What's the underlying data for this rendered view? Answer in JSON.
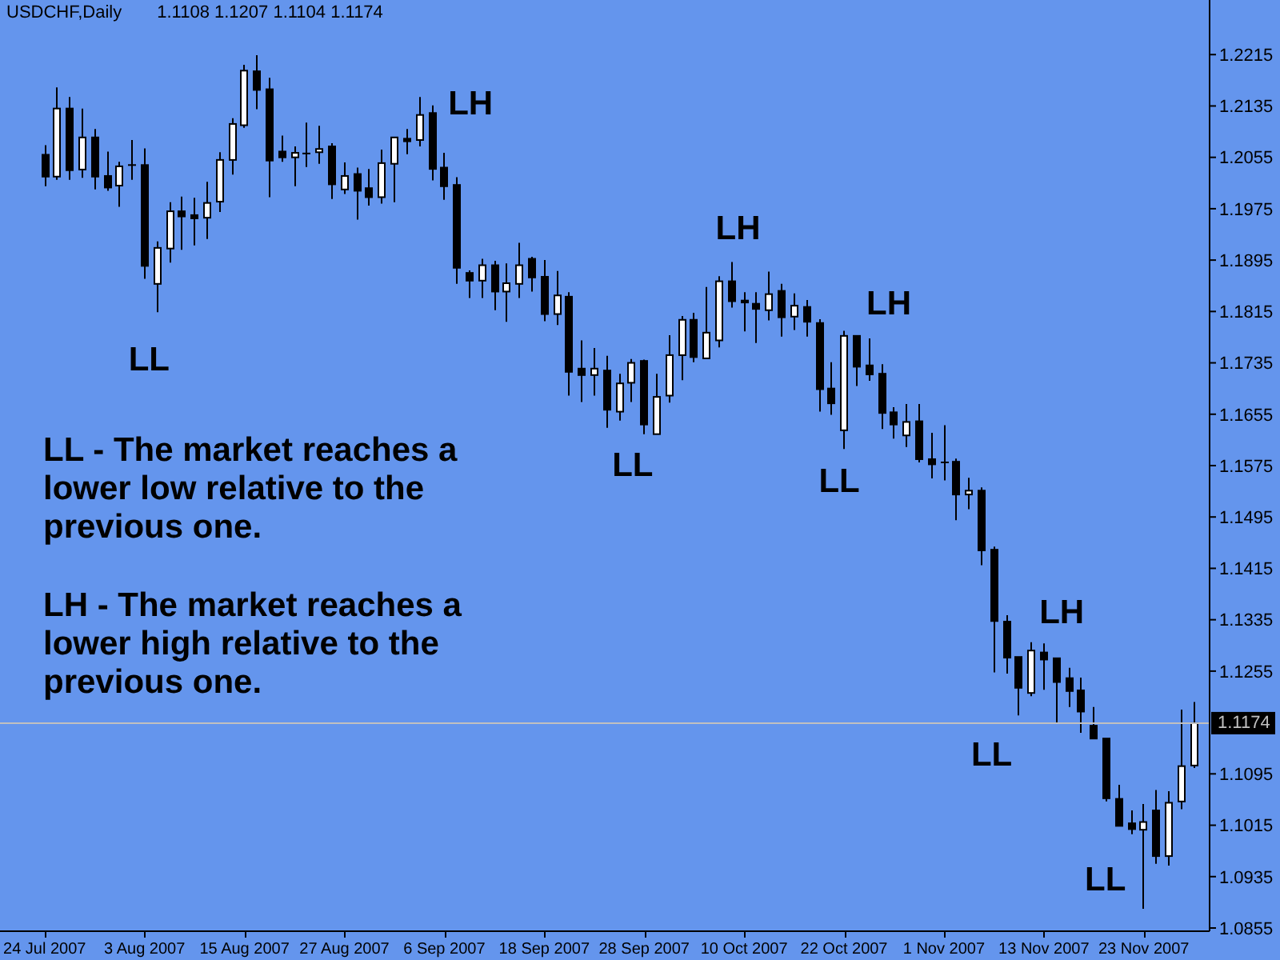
{
  "chart_data": {
    "type": "candlestick",
    "title": "USDCHF,Daily",
    "subtitle": "1.1108 1.1207 1.1104 1.1174",
    "categories": [
      "24 Jul 2007",
      null,
      null,
      null,
      null,
      null,
      null,
      null,
      "3 Aug 2007",
      null,
      null,
      null,
      null,
      null,
      null,
      null,
      "15 Aug 2007",
      null,
      null,
      null,
      null,
      null,
      null,
      null,
      "27 Aug 2007",
      null,
      null,
      null,
      null,
      null,
      null,
      null,
      "6 Sep 2007",
      null,
      null,
      null,
      null,
      null,
      null,
      null,
      "18 Sep 2007",
      null,
      null,
      null,
      null,
      null,
      null,
      null,
      "28 Sep 2007",
      null,
      null,
      null,
      null,
      null,
      null,
      null,
      "10 Oct 2007",
      null,
      null,
      null,
      null,
      null,
      null,
      null,
      "22 Oct 2007",
      null,
      null,
      null,
      null,
      null,
      null,
      null,
      "1 Nov 2007",
      null,
      null,
      null,
      null,
      null,
      null,
      null,
      "13 Nov 2007",
      null,
      null,
      null,
      null,
      null,
      null,
      null,
      "23 Nov 2007",
      null,
      null,
      null,
      null
    ],
    "ohlc": [
      [
        1.2059,
        1.2074,
        1.201,
        1.2025
      ],
      [
        1.2025,
        1.2164,
        1.202,
        1.2131
      ],
      [
        1.2131,
        1.2149,
        1.202,
        1.2035
      ],
      [
        1.2036,
        1.2131,
        1.2023,
        1.2086
      ],
      [
        1.2086,
        1.2099,
        1.2005,
        1.2025
      ],
      [
        1.2026,
        1.2064,
        1.2003,
        1.2008
      ],
      [
        1.2011,
        1.2048,
        1.1978,
        1.2041
      ],
      [
        1.2043,
        1.2082,
        1.202,
        1.2043
      ],
      [
        1.2043,
        1.2069,
        1.1866,
        1.1886
      ],
      [
        1.1858,
        1.1924,
        1.1814,
        1.1914
      ],
      [
        1.1913,
        1.1985,
        1.1891,
        1.1971
      ],
      [
        1.1971,
        1.1994,
        1.1911,
        1.1963
      ],
      [
        1.1965,
        1.1992,
        1.1918,
        1.196
      ],
      [
        1.1961,
        1.2017,
        1.1928,
        1.1984
      ],
      [
        1.1986,
        1.2063,
        1.197,
        1.2051
      ],
      [
        1.2051,
        1.2116,
        1.2028,
        1.2107
      ],
      [
        1.2105,
        1.2199,
        1.2101,
        1.219
      ],
      [
        1.2189,
        1.2214,
        1.213,
        1.216
      ],
      [
        1.2161,
        1.2179,
        1.1993,
        1.205
      ],
      [
        1.2064,
        1.2089,
        1.2048,
        1.2055
      ],
      [
        1.2055,
        1.2072,
        1.201,
        1.2062
      ],
      [
        1.2061,
        1.2109,
        1.204,
        1.2061
      ],
      [
        1.2063,
        1.2104,
        1.2045,
        1.2068
      ],
      [
        1.2072,
        1.2077,
        1.199,
        1.2013
      ],
      [
        1.2005,
        1.2047,
        1.1998,
        1.2026
      ],
      [
        1.2029,
        1.2039,
        1.1958,
        1.2003
      ],
      [
        1.2007,
        1.2037,
        1.198,
        1.1993
      ],
      [
        1.1993,
        1.2067,
        1.1983,
        1.2046
      ],
      [
        1.2045,
        1.2087,
        1.1985,
        1.2086
      ],
      [
        1.2084,
        1.2099,
        1.206,
        1.208
      ],
      [
        1.2082,
        1.2149,
        1.2072,
        1.2121
      ],
      [
        1.2124,
        1.2136,
        1.2019,
        1.2037
      ],
      [
        1.2039,
        1.2062,
        1.1989,
        1.201
      ],
      [
        1.2012,
        1.2024,
        1.1858,
        1.1883
      ],
      [
        1.1875,
        1.1879,
        1.1836,
        1.1863
      ],
      [
        1.1863,
        1.1897,
        1.1836,
        1.1887
      ],
      [
        1.1887,
        1.1894,
        1.1817,
        1.1846
      ],
      [
        1.1846,
        1.189,
        1.1799,
        1.1859
      ],
      [
        1.1858,
        1.1922,
        1.1836,
        1.1887
      ],
      [
        1.1897,
        1.19,
        1.1846,
        1.1868
      ],
      [
        1.1869,
        1.1895,
        1.18,
        1.1811
      ],
      [
        1.1811,
        1.1878,
        1.1794,
        1.184
      ],
      [
        1.1838,
        1.1845,
        1.1684,
        1.1721
      ],
      [
        1.1726,
        1.177,
        1.1674,
        1.1716
      ],
      [
        1.1716,
        1.1758,
        1.1684,
        1.1726
      ],
      [
        1.1723,
        1.1746,
        1.1634,
        1.1662
      ],
      [
        1.1659,
        1.1718,
        1.1645,
        1.1703
      ],
      [
        1.1704,
        1.1741,
        1.1674,
        1.1735
      ],
      [
        1.1738,
        1.174,
        1.1624,
        1.1639
      ],
      [
        1.1624,
        1.1718,
        1.1624,
        1.1682
      ],
      [
        1.1684,
        1.1778,
        1.1673,
        1.1747
      ],
      [
        1.1747,
        1.1808,
        1.1708,
        1.1802
      ],
      [
        1.1802,
        1.1813,
        1.1736,
        1.1744
      ],
      [
        1.1742,
        1.1853,
        1.1742,
        1.1782
      ],
      [
        1.177,
        1.187,
        1.1759,
        1.1862
      ],
      [
        1.1862,
        1.1892,
        1.1821,
        1.1831
      ],
      [
        1.1832,
        1.1845,
        1.1784,
        1.1829
      ],
      [
        1.1827,
        1.1845,
        1.1766,
        1.1819
      ],
      [
        1.1817,
        1.1877,
        1.1801,
        1.1842
      ],
      [
        1.1847,
        1.1858,
        1.1776,
        1.1806
      ],
      [
        1.1807,
        1.1843,
        1.1786,
        1.1824
      ],
      [
        1.1822,
        1.1833,
        1.1776,
        1.1799
      ],
      [
        1.1797,
        1.1803,
        1.1659,
        1.1694
      ],
      [
        1.1695,
        1.1736,
        1.1654,
        1.1672
      ],
      [
        1.163,
        1.1785,
        1.1601,
        1.1777
      ],
      [
        1.1777,
        1.1777,
        1.1699,
        1.1729
      ],
      [
        1.1731,
        1.1773,
        1.1707,
        1.1717
      ],
      [
        1.1718,
        1.1733,
        1.1632,
        1.1657
      ],
      [
        1.1658,
        1.1666,
        1.1617,
        1.1639
      ],
      [
        1.1622,
        1.1671,
        1.1604,
        1.1643
      ],
      [
        1.1644,
        1.1671,
        1.158,
        1.1585
      ],
      [
        1.1585,
        1.1626,
        1.1555,
        1.1577
      ],
      [
        1.158,
        1.1638,
        1.1552,
        1.158
      ],
      [
        1.1581,
        1.1586,
        1.149,
        1.153
      ],
      [
        1.153,
        1.1556,
        1.1507,
        1.1536
      ],
      [
        1.1536,
        1.1541,
        1.142,
        1.1443
      ],
      [
        1.1444,
        1.1449,
        1.1253,
        1.1333
      ],
      [
        1.1332,
        1.1342,
        1.1251,
        1.1276
      ],
      [
        1.1277,
        1.1277,
        1.1186,
        1.1229
      ],
      [
        1.1221,
        1.13,
        1.1216,
        1.1287
      ],
      [
        1.1284,
        1.1298,
        1.1226,
        1.1273
      ],
      [
        1.1275,
        1.1276,
        1.1175,
        1.1238
      ],
      [
        1.1244,
        1.126,
        1.1199,
        1.1224
      ],
      [
        1.1225,
        1.1245,
        1.1159,
        1.1192
      ],
      [
        1.117,
        1.1199,
        1.115,
        1.115
      ],
      [
        1.115,
        1.115,
        1.1052,
        1.1057
      ],
      [
        1.1056,
        1.1078,
        1.1014,
        1.1014
      ],
      [
        1.1018,
        1.1038,
        1.1001,
        1.1009
      ],
      [
        1.1008,
        1.1048,
        1.0885,
        1.102
      ],
      [
        1.1038,
        1.107,
        1.0955,
        1.0967
      ],
      [
        1.0967,
        1.1068,
        1.0952,
        1.105
      ],
      [
        1.1052,
        1.1195,
        1.104,
        1.1107
      ],
      [
        1.1108,
        1.1207,
        1.1104,
        1.1174
      ]
    ],
    "colors": [
      "#000000",
      "#ffffff",
      "#000000",
      "#ffffff",
      "#000000",
      "#000000",
      "#ffffff",
      "#000000",
      "#000000",
      "#ffffff",
      "#ffffff",
      "#000000",
      "#000000",
      "#ffffff",
      "#ffffff",
      "#ffffff",
      "#ffffff",
      "#000000",
      "#000000",
      "#000000",
      "#ffffff",
      "#000000",
      "#ffffff",
      "#000000",
      "#ffffff",
      "#000000",
      "#000000",
      "#ffffff",
      "#ffffff",
      "#000000",
      "#ffffff",
      "#000000",
      "#000000",
      "#000000",
      "#000000",
      "#ffffff",
      "#000000",
      "#ffffff",
      "#ffffff",
      "#000000",
      "#000000",
      "#ffffff",
      "#000000",
      "#000000",
      "#ffffff",
      "#000000",
      "#ffffff",
      "#ffffff",
      "#000000",
      "#ffffff",
      "#ffffff",
      "#ffffff",
      "#000000",
      "#ffffff",
      "#ffffff",
      "#000000",
      "#000000",
      "#000000",
      "#ffffff",
      "#000000",
      "#ffffff",
      "#000000",
      "#000000",
      "#000000",
      "#ffffff",
      "#000000",
      "#000000",
      "#000000",
      "#000000",
      "#ffffff",
      "#000000",
      "#000000",
      "#000000",
      "#000000",
      "#ffffff",
      "#000000",
      "#000000",
      "#000000",
      "#000000",
      "#ffffff",
      "#000000",
      "#000000",
      "#000000",
      "#000000",
      "#000000",
      "#000000",
      "#000000",
      "#000000",
      "#ffffff",
      "#000000",
      "#ffffff",
      "#ffffff",
      "#ffffff"
    ],
    "ylim": [
      1.085,
      1.23
    ],
    "yticks": [
      1.2215,
      1.2135,
      1.2055,
      1.1975,
      1.1895,
      1.1815,
      1.1735,
      1.1655,
      1.1575,
      1.1495,
      1.1415,
      1.1335,
      1.1255,
      1.1095,
      1.1015,
      1.0935,
      1.0855
    ],
    "ref_lines": [
      {
        "axis": "y",
        "value": 1.1174,
        "label": "1.1174",
        "color": "#c0c0c0"
      }
    ],
    "annotations": [
      "LH",
      "LH",
      "LH",
      "LL",
      "LL - The market reaches a lower low relative to the previous one.",
      "LL",
      "LL",
      "LH - The market reaches a lower high relative to the previous one.",
      "LH",
      "LL",
      "LL"
    ]
  }
}
